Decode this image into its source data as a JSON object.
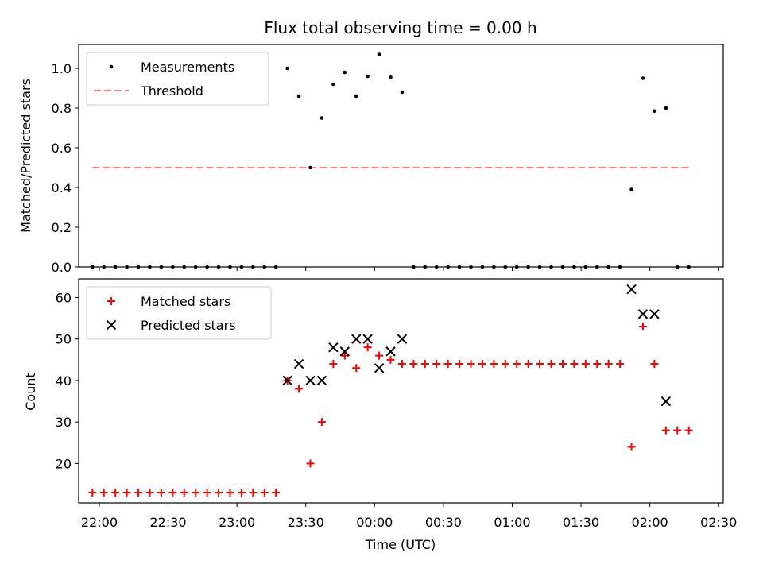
{
  "chart_data": [
    {
      "type": "scatter",
      "title": "Flux total observing time = 0.00 h",
      "xlabel": "",
      "ylabel": "Matched/Predicted stars",
      "ylim": [
        0,
        1.12
      ],
      "yticks": [
        0.0,
        0.2,
        0.4,
        0.6,
        0.8,
        1.0
      ],
      "ytick_labels": [
        "0.0",
        "0.2",
        "0.4",
        "0.6",
        "0.8",
        "1.0"
      ],
      "legend": {
        "placement": "top-left",
        "entries": [
          "Measurements",
          "Threshold"
        ]
      },
      "series": [
        {
          "name": "Measurements",
          "color": "#000000",
          "marker": "dot",
          "x_minutes": [
            -3,
            2,
            7,
            12,
            17,
            22,
            27,
            32,
            37,
            42,
            47,
            52,
            57,
            62,
            67,
            72,
            77,
            82,
            87,
            92,
            97,
            102,
            107,
            112,
            117,
            122,
            127,
            132,
            137,
            142,
            147,
            152,
            157,
            162,
            167,
            172,
            177,
            182,
            187,
            192,
            197,
            202,
            207,
            212,
            217,
            222,
            227,
            232,
            237,
            242,
            247,
            252,
            257
          ],
          "x": [
            "21:57",
            "22:02",
            "22:07",
            "22:12",
            "22:17",
            "22:22",
            "22:27",
            "22:32",
            "22:37",
            "22:42",
            "22:47",
            "22:52",
            "22:57",
            "23:02",
            "23:07",
            "23:12",
            "23:17",
            "23:22",
            "23:27",
            "23:32",
            "23:37",
            "23:42",
            "23:47",
            "23:52",
            "23:57",
            "00:02",
            "00:07",
            "00:12",
            "00:17",
            "00:22",
            "00:27",
            "00:32",
            "00:37",
            "00:42",
            "00:47",
            "00:52",
            "00:57",
            "01:02",
            "01:07",
            "01:12",
            "01:17",
            "01:22",
            "01:27",
            "01:32",
            "01:37",
            "01:42",
            "01:47",
            "01:52",
            "01:57",
            "02:02",
            "02:07",
            "02:12",
            "02:17"
          ],
          "y": [
            0,
            0,
            0,
            0,
            0,
            0,
            0,
            0,
            0,
            0,
            0,
            0,
            0,
            0,
            0,
            0,
            0,
            1.0,
            0.86,
            0.5,
            0.75,
            0.92,
            0.98,
            0.86,
            0.96,
            1.07,
            0.955,
            0.88,
            0,
            0,
            0,
            0,
            0,
            0,
            0,
            0,
            0,
            0,
            0,
            0,
            0,
            0,
            0,
            0,
            0,
            0,
            0,
            0.39,
            0.95,
            0.785,
            0.8,
            0,
            0
          ]
        },
        {
          "name": "Threshold",
          "color": "#ff7f7f",
          "style": "dashed",
          "x_minutes": [
            -3,
            257
          ],
          "y": [
            0.5,
            0.5
          ]
        }
      ]
    },
    {
      "type": "scatter",
      "xlabel": "Time (UTC)",
      "ylabel": "Count",
      "ylim": [
        10.5,
        64.5
      ],
      "yticks": [
        20,
        30,
        40,
        50,
        60
      ],
      "ytick_labels": [
        "20",
        "30",
        "40",
        "50",
        "60"
      ],
      "xlim_minutes": [
        -9,
        272
      ],
      "xticks_minutes": [
        0,
        30,
        60,
        90,
        120,
        150,
        180,
        210,
        240,
        270
      ],
      "xtick_labels": [
        "22:00",
        "22:30",
        "23:00",
        "23:30",
        "00:00",
        "00:30",
        "01:00",
        "01:30",
        "02:00",
        "02:30"
      ],
      "legend": {
        "placement": "top-left",
        "entries": [
          "Matched stars",
          "Predicted stars"
        ]
      },
      "series": [
        {
          "name": "Matched stars",
          "color": "#ff0000",
          "marker": "plus",
          "x_minutes": [
            -3,
            2,
            7,
            12,
            17,
            22,
            27,
            32,
            37,
            42,
            47,
            52,
            57,
            62,
            67,
            72,
            77,
            82,
            87,
            92,
            97,
            102,
            107,
            112,
            117,
            122,
            127,
            132,
            137,
            142,
            147,
            152,
            157,
            162,
            167,
            172,
            177,
            182,
            187,
            192,
            197,
            202,
            207,
            212,
            217,
            222,
            227,
            232,
            237,
            242,
            247,
            252,
            257
          ],
          "y": [
            13,
            13,
            13,
            13,
            13,
            13,
            13,
            13,
            13,
            13,
            13,
            13,
            13,
            13,
            13,
            13,
            13,
            40,
            38,
            20,
            30,
            44,
            46,
            43,
            48,
            46,
            45,
            44,
            44,
            44,
            44,
            44,
            44,
            44,
            44,
            44,
            44,
            44,
            44,
            44,
            44,
            44,
            44,
            44,
            44,
            44,
            44,
            24,
            53,
            44,
            28,
            28,
            28
          ]
        },
        {
          "name": "Predicted stars",
          "color": "#000000",
          "marker": "x",
          "x_minutes": [
            82,
            87,
            92,
            97,
            102,
            107,
            112,
            117,
            122,
            127,
            132,
            232,
            237,
            242,
            247
          ],
          "y": [
            40,
            44,
            40,
            40,
            48,
            47,
            50,
            50,
            43,
            47,
            50,
            62,
            56,
            56,
            35
          ]
        }
      ]
    }
  ]
}
